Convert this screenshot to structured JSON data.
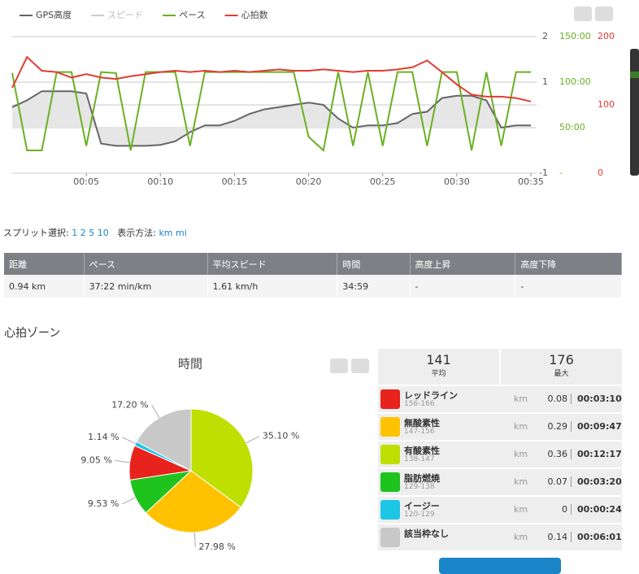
{
  "chart_data": [
    {
      "type": "line",
      "x": [
        0,
        1,
        2,
        3,
        4,
        5,
        6,
        7,
        8,
        9,
        10,
        11,
        12,
        13,
        14,
        15,
        16,
        17,
        18,
        19,
        20,
        21,
        22,
        23,
        24,
        25,
        26,
        27,
        28,
        29,
        30,
        31,
        32,
        33,
        34,
        35
      ],
      "xlim": [
        0,
        35
      ],
      "xticks": [
        {
          "value": 5,
          "label": "00:05"
        },
        {
          "value": 10,
          "label": "00:10"
        },
        {
          "value": 15,
          "label": "00:15"
        },
        {
          "value": 20,
          "label": "00:20"
        },
        {
          "value": 25,
          "label": "00:25"
        },
        {
          "value": 30,
          "label": "00:30"
        },
        {
          "value": 35,
          "label": "00:35"
        }
      ],
      "ylim": [
        -1,
        2
      ],
      "yticks": [
        -1,
        1,
        2
      ],
      "y2lim": [
        0,
        150
      ],
      "y2ticks": [
        {
          "value": 0,
          "label": "-"
        },
        {
          "value": 50,
          "label": "50:00"
        },
        {
          "value": 100,
          "label": "100:00"
        },
        {
          "value": 150,
          "label": "150:00"
        }
      ],
      "y3lim": [
        0,
        200
      ],
      "y3ticks": [
        0,
        100,
        200
      ],
      "grid": true,
      "series": [
        {
          "name": "GPS高度",
          "color": "#666666",
          "axis": "y",
          "area": true,
          "visible": true,
          "values": [
            0.45,
            0.6,
            0.8,
            0.8,
            0.8,
            0.75,
            -0.35,
            -0.4,
            -0.4,
            -0.4,
            -0.38,
            -0.3,
            -0.1,
            0.05,
            0.05,
            0.15,
            0.3,
            0.4,
            0.45,
            0.5,
            0.55,
            0.5,
            0.2,
            0.0,
            0.05,
            0.05,
            0.1,
            0.3,
            0.35,
            0.65,
            0.7,
            0.7,
            0.6,
            0.0,
            0.05,
            0.05
          ]
        },
        {
          "name": "スピード",
          "color": "#cccccc",
          "axis": "y",
          "visible": false,
          "values": [
            null,
            null,
            null,
            null,
            null,
            null,
            null,
            null,
            null,
            null,
            null,
            null,
            null,
            null,
            null,
            null,
            null,
            null,
            null,
            null,
            null,
            null,
            null,
            null,
            null,
            null,
            null,
            null,
            null,
            null,
            null,
            null,
            null,
            null,
            null,
            null
          ]
        },
        {
          "name": "ペース",
          "color": "#6ab023",
          "axis": "y2",
          "visible": true,
          "values": [
            110,
            25,
            25,
            111,
            111,
            30,
            111,
            110,
            25,
            111,
            111,
            111,
            30,
            111,
            111,
            111,
            111,
            111,
            111,
            111,
            40,
            25,
            111,
            30,
            111,
            30,
            111,
            111,
            30,
            111,
            111,
            25,
            111,
            30,
            111,
            111
          ]
        },
        {
          "name": "心拍数",
          "color": "#e03c31",
          "axis": "y3",
          "visible": true,
          "values": [
            125,
            170,
            150,
            148,
            140,
            145,
            140,
            138,
            142,
            145,
            148,
            150,
            148,
            150,
            148,
            150,
            148,
            150,
            152,
            150,
            150,
            152,
            150,
            148,
            150,
            150,
            152,
            155,
            165,
            148,
            130,
            115,
            112,
            112,
            110,
            105
          ]
        }
      ]
    },
    {
      "type": "pie",
      "title": "時間",
      "categories": [
        "有酸素性",
        "無酸素性",
        "脂肪燃焼",
        "レッドライン",
        "イージー",
        "該当枠なし"
      ],
      "values": [
        35.1,
        27.98,
        9.53,
        9.05,
        1.14,
        17.2
      ],
      "value_labels": [
        "35.10 %",
        "27.98 %",
        "9.53 %",
        "9.05 %",
        "1.14 %",
        "17.20 %"
      ],
      "colors": [
        "#bedf00",
        "#ffc200",
        "#1ec31e",
        "#e8221c",
        "#1ec6e6",
        "#c8c8c8"
      ]
    }
  ],
  "split": {
    "label": "スプリット選択:",
    "options": [
      "1",
      "2",
      "5",
      "10"
    ],
    "unit_label": "表示方法:",
    "units": [
      "km",
      "mi"
    ]
  },
  "table": {
    "headers": [
      "距離",
      "ペース",
      "平均スピード",
      "時間",
      "高度上昇",
      "高度下降"
    ],
    "rows": [
      [
        "0.94 km",
        "37:22 min/km",
        "1.61 km/h",
        "34:59",
        "-",
        "-"
      ]
    ]
  },
  "zones": {
    "title": "心拍ゾーン",
    "average": {
      "value": "141",
      "label": "平均"
    },
    "max": {
      "value": "176",
      "label": "最大"
    },
    "rows": [
      {
        "name": "レッドライン",
        "range": "156-166",
        "unit": "km",
        "distance": "0.08",
        "time": "00:03:10",
        "color": "#e8221c"
      },
      {
        "name": "無酸素性",
        "range": "147-156",
        "unit": "km",
        "distance": "0.29",
        "time": "00:09:47",
        "color": "#ffc200"
      },
      {
        "name": "有酸素性",
        "range": "138-147",
        "unit": "km",
        "distance": "0.36",
        "time": "00:12:17",
        "color": "#bedf00"
      },
      {
        "name": "脂肪燃焼",
        "range": "129-138",
        "unit": "km",
        "distance": "0.07",
        "time": "00:03:20",
        "color": "#1ec31e"
      },
      {
        "name": "イージー",
        "range": "120-129",
        "unit": "km",
        "distance": "0",
        "time": "00:00:24",
        "color": "#1ec6e6"
      },
      {
        "name": "該当枠なし",
        "range": "",
        "unit": "km",
        "distance": "0.14",
        "time": "00:06:01",
        "color": "#c8c8c8"
      }
    ]
  }
}
